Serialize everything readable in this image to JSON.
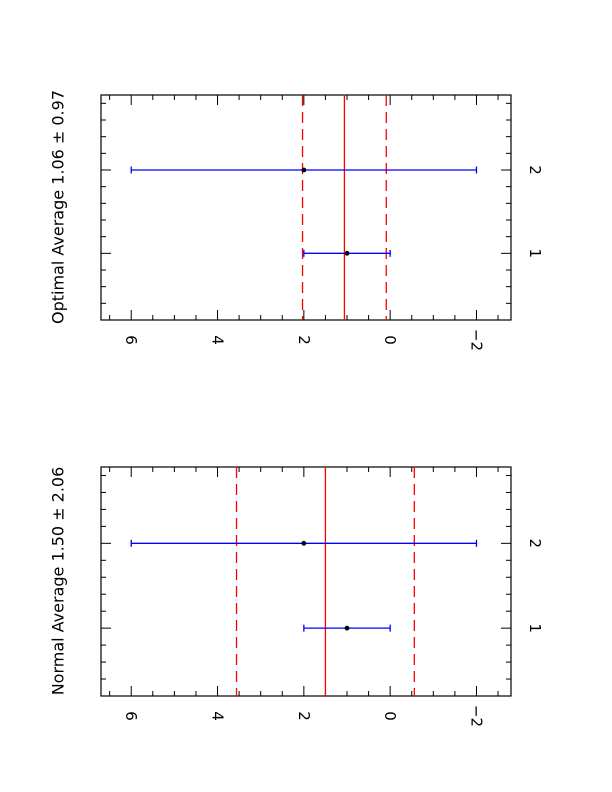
{
  "chart_data": [
    {
      "type": "scatter",
      "title": "Optimal Average",
      "average": "1.06",
      "pm": "±",
      "uncertainty": "0.97",
      "xlim": [
        0.2,
        2.9
      ],
      "ylim": [
        -2.8,
        6.7
      ],
      "x_ticks": [
        {
          "value": 1,
          "label": "1"
        },
        {
          "value": 2,
          "label": "2"
        }
      ],
      "y_ticks": [
        {
          "value": 6,
          "label": "6"
        },
        {
          "value": 4,
          "label": "4"
        },
        {
          "value": 2,
          "label": "2"
        },
        {
          "value": 0,
          "label": "0"
        },
        {
          "value": -2,
          "label": "−2"
        }
      ],
      "points": [
        {
          "x": 1,
          "y": 1.0,
          "err_low": 0.0,
          "err_high": 2.0
        },
        {
          "x": 2,
          "y": 2.0,
          "err_low": -2.0,
          "err_high": 6.0
        }
      ],
      "mean_line": 1.06,
      "band_lines": [
        0.09,
        2.03
      ],
      "colors": {
        "points": "#000000",
        "errorbars": "#0000ff",
        "mean": "#ff0000",
        "band": "#ff0000"
      }
    },
    {
      "type": "scatter",
      "title": "Normal Average",
      "average": "1.50",
      "pm": "±",
      "uncertainty": "2.06",
      "xlim": [
        0.2,
        2.9
      ],
      "ylim": [
        -2.8,
        6.7
      ],
      "x_ticks": [
        {
          "value": 1,
          "label": "1"
        },
        {
          "value": 2,
          "label": "2"
        }
      ],
      "y_ticks": [
        {
          "value": 6,
          "label": "6"
        },
        {
          "value": 4,
          "label": "4"
        },
        {
          "value": 2,
          "label": "2"
        },
        {
          "value": 0,
          "label": "0"
        },
        {
          "value": -2,
          "label": "−2"
        }
      ],
      "points": [
        {
          "x": 1,
          "y": 1.0,
          "err_low": 0.0,
          "err_high": 2.0
        },
        {
          "x": 2,
          "y": 2.0,
          "err_low": -2.0,
          "err_high": 6.0
        }
      ],
      "mean_line": 1.5,
      "band_lines": [
        -0.56,
        3.56
      ],
      "colors": {
        "points": "#000000",
        "errorbars": "#0000ff",
        "mean": "#ff0000",
        "band": "#ff0000"
      }
    }
  ]
}
